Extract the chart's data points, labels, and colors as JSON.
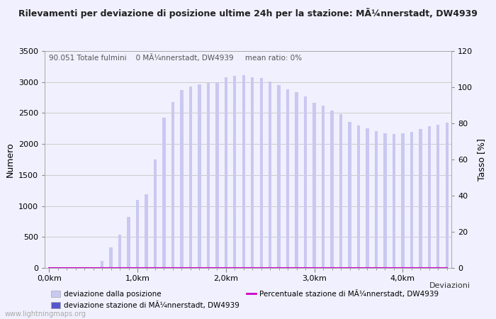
{
  "title": "Rilevamenti per deviazione di posizione ultime 24h per la stazione: MÃ¼nnerstadt, DW4939",
  "subtitle": "90.051 Totale fulmini    0 MÃ¼nnerstadt, DW4939     mean ratio: 0%",
  "ylabel_left": "Numero",
  "ylabel_right": "Tasso [%]",
  "ylim_left": [
    0,
    3500
  ],
  "ylim_right": [
    0,
    120
  ],
  "ytick_left": [
    0,
    500,
    1000,
    1500,
    2000,
    2500,
    3000,
    3500
  ],
  "ytick_right": [
    0,
    20,
    40,
    60,
    80,
    100,
    120
  ],
  "bar_values_light": [
    0,
    0,
    0,
    0,
    0,
    0,
    120,
    330,
    540,
    820,
    1100,
    1190,
    1750,
    2420,
    2680,
    2870,
    2930,
    2960,
    2980,
    3000,
    3080,
    3100,
    3110,
    3080,
    3060,
    3010,
    2950,
    2880,
    2840,
    2770,
    2670,
    2620,
    2540,
    2480,
    2360,
    2300,
    2250,
    2210,
    2170,
    2160,
    2170,
    2200,
    2240,
    2290,
    2310,
    2340
  ],
  "bar_values_dark": [
    0,
    0,
    0,
    0,
    0,
    0,
    0,
    0,
    0,
    0,
    0,
    0,
    0,
    0,
    0,
    0,
    0,
    0,
    0,
    0,
    0,
    0,
    0,
    0,
    0,
    0,
    0,
    0,
    0,
    0,
    0,
    0,
    0,
    0,
    0,
    0,
    0,
    0,
    0,
    0,
    0,
    0,
    0,
    0,
    0,
    0
  ],
  "line_values": [
    0,
    0,
    0,
    0,
    0,
    0,
    0,
    0,
    0,
    0,
    0,
    0,
    0,
    0,
    0,
    0,
    0,
    0,
    0,
    0,
    0,
    0,
    0,
    0,
    0,
    0,
    0,
    0,
    0,
    0,
    0,
    0,
    0,
    0,
    0,
    0,
    0,
    0,
    0,
    0,
    0,
    0,
    0,
    0,
    0,
    0
  ],
  "color_light_bar": "#c8c8f0",
  "color_dark_bar": "#5555cc",
  "color_line": "#cc00cc",
  "background_color": "#f0f0ff",
  "grid_color": "#cccccc",
  "legend_label_1": "deviazione dalla posizione",
  "legend_label_2": "deviazione stazione di MÃ¼nnerstadt, DW4939",
  "legend_label_3": "Percentuale stazione di MÃ¼nnerstadt, DW4939",
  "legend_label_right": "Deviazioni",
  "watermark": "www.lightningmaps.org",
  "xtick_pos": [
    0,
    10,
    20,
    30,
    40
  ],
  "xtick_labels": [
    "0,0km",
    "1,0km",
    "2,0km",
    "3,0km",
    "4,0km"
  ]
}
